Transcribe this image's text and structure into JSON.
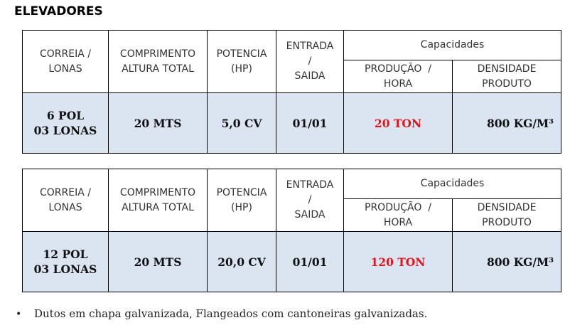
{
  "title": "ELEVADORES",
  "headers": {
    "correia": [
      "CORREIA /",
      "LONAS"
    ],
    "comprimento": [
      "COMPRIMENTO",
      "ALTURA TOTAL"
    ],
    "potencia": [
      "POTENCIA",
      "(HP)"
    ],
    "entrada": [
      "ENTRADA",
      "/",
      "SAIDA"
    ],
    "capacidades": "Capacidades",
    "producao": [
      "PRODUÇÃO  /",
      "HORA"
    ],
    "densidade": [
      "DENSIDADE",
      "PRODUTO"
    ]
  },
  "tables": [
    {
      "correia": [
        "6 POL",
        "03 LONAS"
      ],
      "comprimento": "20 MTS",
      "potencia": "5,0 CV",
      "entrada": "01/01",
      "producao": "20 TON",
      "densidade": "800 KG/M³"
    },
    {
      "correia": [
        "12 POL",
        "03 LONAS"
      ],
      "comprimento": "20 MTS",
      "potencia": "20,0 CV",
      "entrada": "01/01",
      "producao": "120 TON",
      "densidade": "800 KG/M³"
    }
  ],
  "bullet": {
    "symbol": "•",
    "text": "Dutos em chapa galvanizada, Flangeados com cantoneiras galvanizadas."
  },
  "colors": {
    "data_bg": "#dbe4f1",
    "highlight": "#e3151b"
  }
}
